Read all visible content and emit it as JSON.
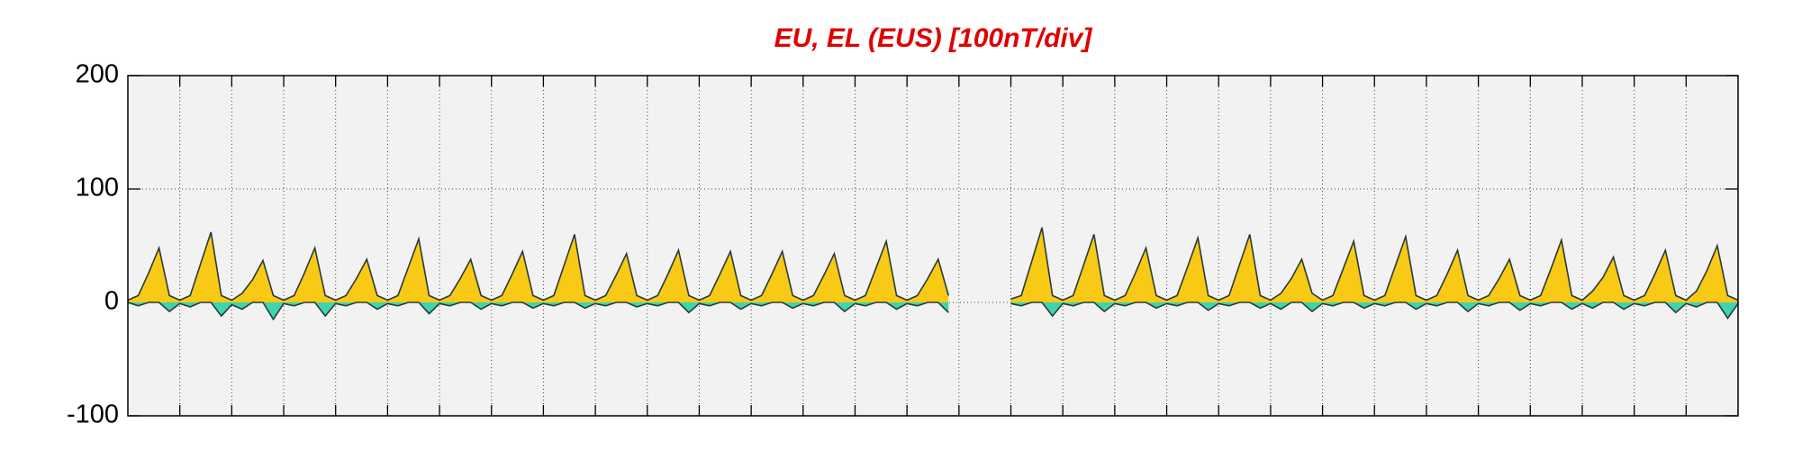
{
  "chart_data": {
    "type": "area",
    "title": "EU, EL (EUS)  [100nT/div]",
    "x": [
      0,
      0.2,
      0.4,
      0.6,
      0.8,
      1,
      1.2,
      1.4,
      1.6,
      1.8,
      2,
      2.2,
      2.4,
      2.6,
      2.8,
      3,
      3.2,
      3.4,
      3.6,
      3.8,
      4,
      4.2,
      4.4,
      4.6,
      4.8,
      5,
      5.2,
      5.4,
      5.6,
      5.8,
      6,
      6.2,
      6.4,
      6.6,
      6.8,
      7,
      7.2,
      7.4,
      7.6,
      7.8,
      8,
      8.2,
      8.4,
      8.6,
      8.8,
      9,
      9.2,
      9.4,
      9.6,
      9.8,
      10,
      10.2,
      10.4,
      10.6,
      10.8,
      11,
      11.2,
      11.4,
      11.6,
      11.8,
      12,
      12.2,
      12.4,
      12.6,
      12.8,
      13,
      13.2,
      13.4,
      13.6,
      13.8,
      14,
      14.2,
      14.4,
      14.6,
      14.8,
      15,
      15.2,
      15.4,
      15.6,
      15.8,
      16,
      16.2,
      16.4,
      16.6,
      16.8,
      17,
      17.2,
      17.4,
      17.6,
      17.8,
      18,
      18.2,
      18.4,
      18.6,
      18.8,
      19,
      19.2,
      19.4,
      19.6,
      19.8,
      20,
      20.2,
      20.4,
      20.6,
      20.8,
      21,
      21.2,
      21.4,
      21.6,
      21.8,
      22,
      22.2,
      22.4,
      22.6,
      22.8,
      23,
      23.2,
      23.4,
      23.6,
      23.8,
      24,
      24.2,
      24.4,
      24.6,
      24.8,
      25,
      25.2,
      25.4,
      25.6,
      25.8,
      26,
      26.2,
      26.4,
      26.6,
      26.8,
      27,
      27.2,
      27.4,
      27.6,
      27.8,
      28,
      28.2,
      28.4,
      28.6,
      28.8,
      29,
      29.2,
      29.4,
      29.6,
      29.8,
      30,
      30.2,
      30.4,
      30.6,
      30.8,
      31
    ],
    "series": [
      {
        "color": "#f8c915",
        "values": [
          2,
          6,
          26,
          48,
          6,
          2,
          6,
          34,
          62,
          6,
          2,
          8,
          20,
          37,
          6,
          2,
          6,
          26,
          48,
          6,
          2,
          6,
          21,
          38,
          6,
          2,
          6,
          31,
          56,
          6,
          2,
          6,
          21,
          38,
          6,
          2,
          6,
          25,
          45,
          6,
          2,
          6,
          33,
          60,
          6,
          2,
          6,
          24,
          43,
          6,
          2,
          6,
          25,
          46,
          6,
          2,
          6,
          25,
          45,
          6,
          2,
          6,
          25,
          45,
          6,
          2,
          6,
          24,
          43,
          6,
          2,
          6,
          30,
          54,
          6,
          2,
          6,
          21,
          38,
          6,
          null,
          null,
          null,
          null,
          null,
          3,
          6,
          36,
          66,
          6,
          2,
          6,
          33,
          60,
          6,
          2,
          6,
          26,
          48,
          6,
          2,
          6,
          31,
          57,
          6,
          2,
          6,
          33,
          60,
          6,
          2,
          8,
          21,
          38,
          8,
          2,
          6,
          30,
          54,
          6,
          2,
          6,
          32,
          58,
          6,
          2,
          6,
          25,
          46,
          6,
          2,
          6,
          21,
          38,
          6,
          2,
          6,
          30,
          55,
          6,
          2,
          10,
          22,
          40,
          6,
          2,
          6,
          25,
          46,
          6,
          2,
          10,
          28,
          50,
          6,
          2
        ]
      },
      {
        "color": "#3fd4b0",
        "values": [
          0,
          -3,
          0,
          0,
          -8,
          -1,
          -4,
          0,
          0,
          -12,
          -2,
          -6,
          0,
          0,
          -15,
          -1,
          -3,
          0,
          0,
          -12,
          -1,
          -3,
          0,
          0,
          -6,
          -1,
          -3,
          0,
          0,
          -10,
          -1,
          -3,
          0,
          0,
          -6,
          -1,
          -3,
          0,
          0,
          -5,
          -1,
          -3,
          0,
          0,
          -5,
          -1,
          -3,
          0,
          0,
          -4,
          -1,
          -3,
          0,
          0,
          -9,
          -1,
          -3,
          0,
          0,
          -6,
          -1,
          -3,
          0,
          0,
          -5,
          -1,
          -3,
          0,
          0,
          -8,
          -1,
          -3,
          0,
          0,
          -6,
          -1,
          -3,
          0,
          0,
          -9,
          null,
          null,
          null,
          null,
          null,
          -1,
          -3,
          0,
          0,
          -12,
          -1,
          -3,
          0,
          0,
          -8,
          -1,
          -3,
          0,
          0,
          -5,
          -1,
          -3,
          0,
          0,
          -7,
          -1,
          -3,
          0,
          0,
          -5,
          -1,
          -6,
          0,
          0,
          -8,
          -1,
          -3,
          0,
          0,
          -5,
          -1,
          -3,
          0,
          0,
          -6,
          -1,
          -3,
          0,
          0,
          -8,
          -1,
          -3,
          0,
          0,
          -7,
          -1,
          -3,
          0,
          0,
          -6,
          -1,
          -5,
          0,
          0,
          -6,
          -1,
          -3,
          0,
          0,
          -9,
          -1,
          -4,
          0,
          0,
          -14,
          -1
        ]
      }
    ],
    "xlim": [
      0,
      31
    ],
    "xticks": [
      1,
      2,
      3,
      4,
      5,
      6,
      7,
      8,
      9,
      10,
      11,
      12,
      13,
      14,
      15,
      16,
      17,
      18,
      19,
      20,
      21,
      22,
      23,
      24,
      25,
      26,
      27,
      28,
      29,
      30
    ],
    "ylim": [
      -100,
      200
    ],
    "yticks": [
      -100,
      0,
      100,
      200
    ],
    "grid": true
  }
}
